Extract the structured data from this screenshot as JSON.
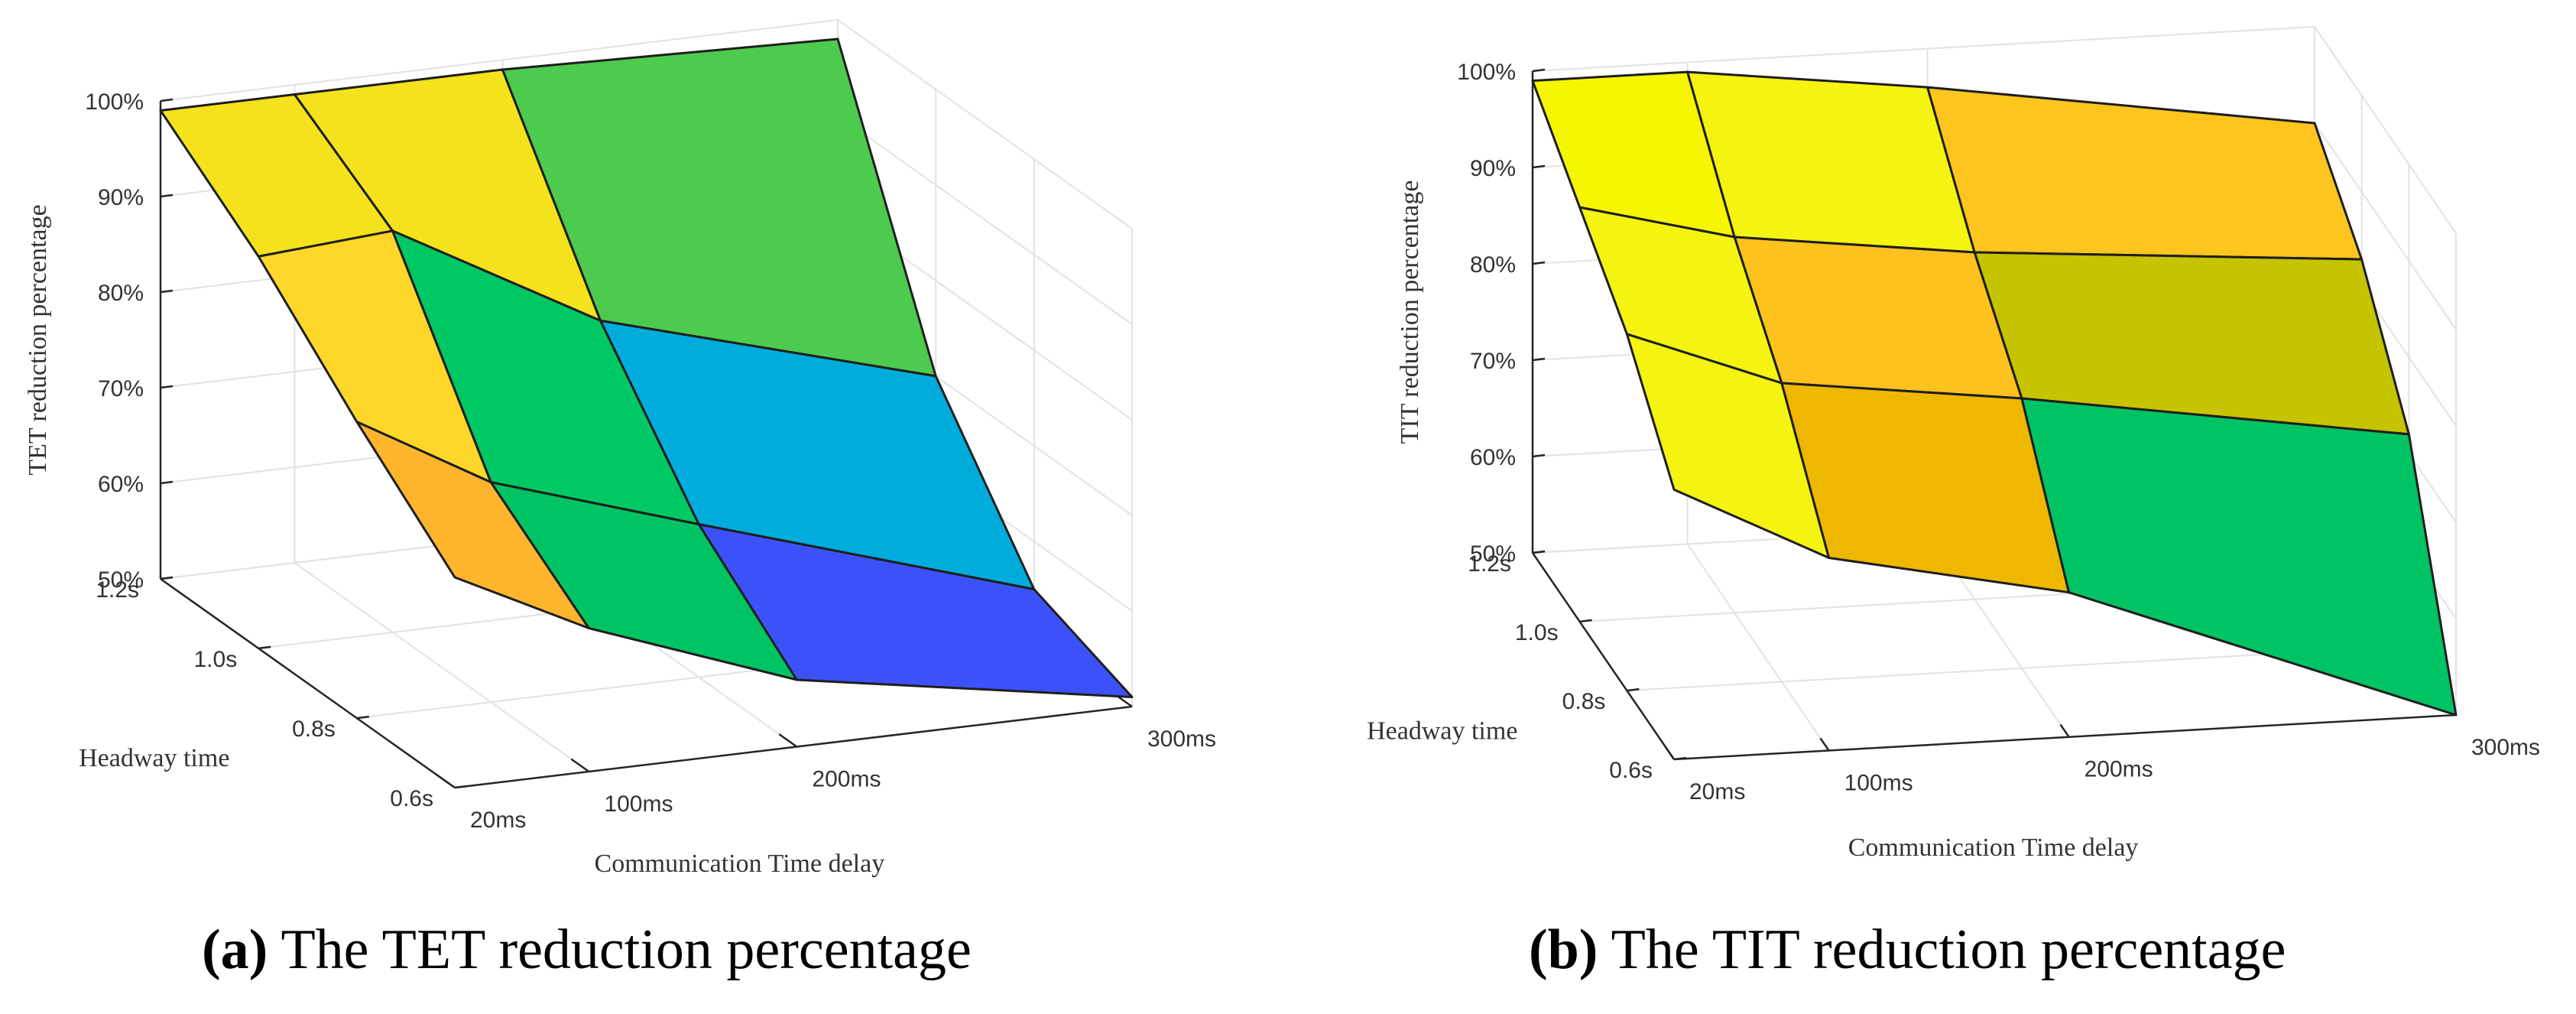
{
  "colors": {
    "grid": "#e2e2e2",
    "axis": "#262626",
    "edge": "#1e1e1e",
    "panel_a_patches": [
      [
        "#f4e21c",
        "#f4e21c",
        "#4ccb4e"
      ],
      [
        "#fed72a",
        "#00c864",
        "#00acdc"
      ],
      [
        "#fdb52e",
        "#00c464",
        "#3c52f8"
      ]
    ],
    "panel_b_patches": [
      [
        "#f6f600",
        "#f4f410",
        "#fdc51e"
      ],
      [
        "#f4f410",
        "#fdc21e",
        "#c6c300"
      ],
      [
        "#f4f410",
        "#efb800",
        "#00c464"
      ]
    ]
  },
  "chart_data": [
    {
      "type": "surface",
      "panel": "a",
      "caption_letter": "(a)",
      "caption_text": " The TET reduction percentage",
      "zlabel": "TET reduction percentage",
      "xlabel": "Communication Time delay",
      "ylabel": "Headway time",
      "x": [
        20,
        100,
        200,
        300
      ],
      "x_ticks": [
        "20ms",
        "100ms",
        "200ms",
        "300ms"
      ],
      "y": [
        1.2,
        1.0,
        0.8,
        0.6
      ],
      "y_ticks": [
        "1.2s",
        "1.0s",
        "0.8s",
        "0.6s"
      ],
      "z_ticks": [
        "50%",
        "60%",
        "70%",
        "80%",
        "90%",
        "100%"
      ],
      "zlim": [
        50,
        100
      ],
      "z_percent": [
        [
          99,
          99,
          99,
          98
        ],
        [
          91,
          92,
          80,
          70
        ],
        [
          81,
          73,
          66,
          55
        ],
        [
          72,
          65,
          57,
          51
        ]
      ]
    },
    {
      "type": "surface",
      "panel": "b",
      "caption_letter": "(b)",
      "caption_text": " The TIT reduction percentage",
      "zlabel": "TIT reduction percentage",
      "xlabel": "Communication Time delay",
      "ylabel": "Headway time",
      "x": [
        20,
        100,
        200,
        300
      ],
      "x_ticks": [
        "20ms",
        "100ms",
        "200ms",
        "300ms"
      ],
      "y": [
        1.2,
        1.0,
        0.8,
        0.6
      ],
      "y_ticks": [
        "1.2s",
        "1.0s",
        "0.8s",
        "0.6s"
      ],
      "z_ticks": [
        "50%",
        "60%",
        "70%",
        "80%",
        "90%",
        "100%"
      ],
      "zlim": [
        50,
        100
      ],
      "z_percent": [
        [
          99,
          99,
          96,
          90
        ],
        [
          93,
          89,
          86,
          83
        ],
        [
          87,
          81,
          78,
          72
        ],
        [
          78,
          70,
          65,
          50
        ]
      ]
    }
  ]
}
